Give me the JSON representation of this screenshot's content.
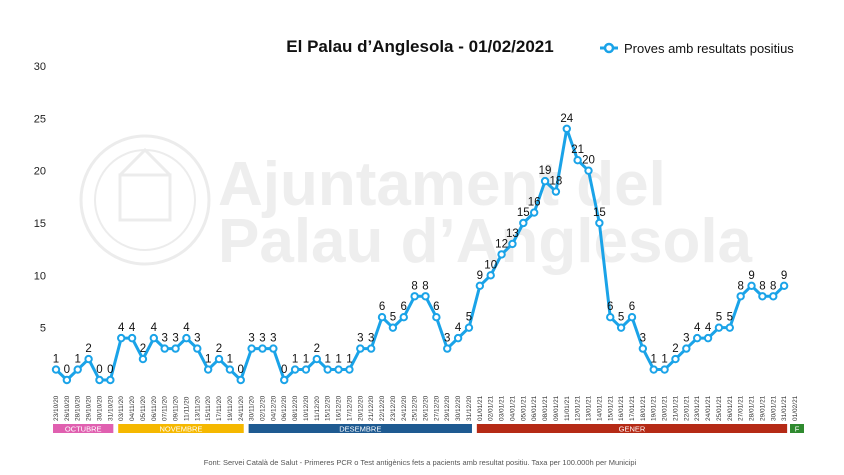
{
  "chart_data": {
    "type": "line",
    "title": "El Palau d’Anglesola - 01/02/2021",
    "ylim": [
      0,
      30
    ],
    "yticks": [
      5,
      10,
      15,
      20,
      25,
      30
    ],
    "grid": false,
    "legend_position": "top-right",
    "series": [
      {
        "name": "Proves amb resultats positius",
        "color": "#1aa3e8",
        "x": [
          "23/10/20",
          "26/10/20",
          "28/10/20",
          "29/10/20",
          "30/10/20",
          "31/10/20",
          "03/11/20",
          "04/11/20",
          "05/11/20",
          "06/11/20",
          "07/11/20",
          "09/11/20",
          "11/11/20",
          "13/11/20",
          "15/11/20",
          "17/11/20",
          "19/11/20",
          "24/11/20",
          "30/11/20",
          "02/12/20",
          "04/12/20",
          "06/12/20",
          "08/12/20",
          "10/12/20",
          "11/12/20",
          "15/12/20",
          "16/12/20",
          "17/12/20",
          "20/12/20",
          "21/12/20",
          "22/12/20",
          "23/12/20",
          "24/12/20",
          "25/12/20",
          "26/12/20",
          "27/12/20",
          "29/12/20",
          "30/12/20",
          "31/12/20",
          "01/01/21",
          "02/01/21",
          "03/01/21",
          "04/01/21",
          "05/01/21",
          "06/01/21",
          "08/01/21",
          "09/01/21",
          "11/01/21",
          "12/01/21",
          "13/01/21",
          "14/01/21",
          "15/01/21",
          "16/01/21",
          "17/01/21",
          "18/01/21",
          "19/01/21",
          "20/01/21",
          "21/01/21",
          "22/01/21",
          "23/01/21",
          "24/01/21",
          "25/01/21",
          "26/01/21",
          "27/01/21",
          "28/01/21",
          "29/01/21",
          "30/01/21",
          "31/01/21",
          "01/02/21"
        ],
        "values": [
          1,
          0,
          1,
          2,
          0,
          0,
          4,
          4,
          2,
          4,
          3,
          3,
          4,
          3,
          1,
          2,
          1,
          0,
          3,
          3,
          3,
          0,
          1,
          1,
          2,
          1,
          1,
          1,
          3,
          3,
          6,
          5,
          6,
          8,
          8,
          6,
          3,
          4,
          5,
          9,
          10,
          12,
          13,
          15,
          16,
          19,
          18,
          24,
          21,
          20,
          15,
          6,
          5,
          6,
          3,
          1,
          1,
          2,
          3,
          4,
          4,
          5,
          5,
          8,
          9,
          8,
          8,
          9,
          null
        ]
      }
    ]
  },
  "months": [
    {
      "label": "OCTUBRE",
      "color": "#e060b0"
    },
    {
      "label": "NOVEMBRE",
      "color": "#f5b800"
    },
    {
      "label": "DESEMBRE",
      "color": "#1e5a91"
    },
    {
      "label": "GENER",
      "color": "#b52a16"
    },
    {
      "label": "F",
      "color": "#2f8a2f"
    }
  ],
  "watermark": {
    "line1": "Ajuntament del",
    "line2": "Palau d’Anglesola",
    "seal_text": "EL PALAU D'ANGLESOLA"
  },
  "source": "Font: Servei Català de Salut - Primeres PCR o Test antigènics fets a pacients amb resultat positiu. Taxa per 100.000h per Municipi"
}
